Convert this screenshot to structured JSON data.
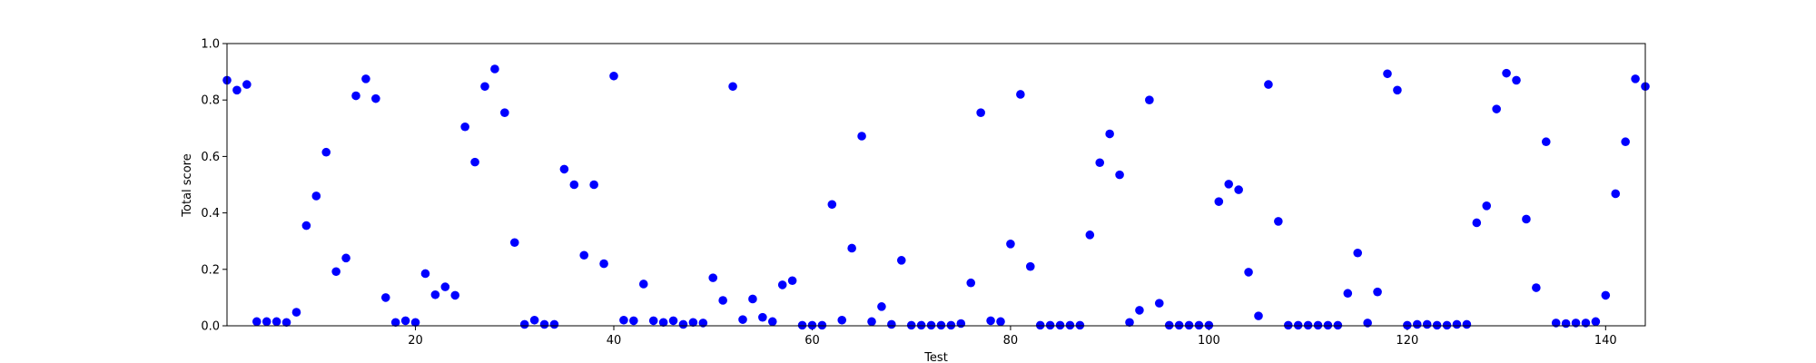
{
  "chart_data": {
    "type": "scatter",
    "title": "",
    "xlabel": "Test",
    "ylabel": "Total score",
    "xlim": [
      1,
      144
    ],
    "ylim": [
      0.0,
      1.0
    ],
    "xticks": [
      20,
      40,
      60,
      80,
      100,
      120,
      140
    ],
    "yticks": [
      0.0,
      0.2,
      0.4,
      0.6,
      0.8,
      1.0
    ],
    "grid": false,
    "legend": "none",
    "marker_color": "#0000ff",
    "series": [
      {
        "x": [
          1,
          2,
          3,
          4,
          5,
          6,
          7,
          8,
          9,
          10,
          11,
          12,
          13,
          14,
          15,
          16,
          17,
          18,
          19,
          20,
          21,
          22,
          23,
          24,
          25,
          26,
          27,
          28,
          29,
          30,
          31,
          32,
          33,
          34,
          35,
          36,
          37,
          38,
          39,
          40,
          41,
          42,
          43,
          44,
          45,
          46,
          47,
          48,
          49,
          50,
          51,
          52,
          53,
          54,
          55,
          56,
          57,
          58,
          59,
          60,
          61,
          62,
          63,
          64,
          65,
          66,
          67,
          68,
          69,
          70,
          71,
          72,
          73,
          74,
          75,
          76,
          77,
          78,
          79,
          80,
          81,
          82,
          83,
          84,
          85,
          86,
          87,
          88,
          89,
          90,
          91,
          92,
          93,
          94,
          95,
          96,
          97,
          98,
          99,
          100,
          101,
          102,
          103,
          104,
          105,
          106,
          107,
          108,
          109,
          110,
          111,
          112,
          113,
          114,
          115,
          116,
          117,
          118,
          119,
          120,
          121,
          122,
          123,
          124,
          125,
          126,
          127,
          128,
          129,
          130,
          131,
          132,
          133,
          134,
          135,
          136,
          137,
          138,
          139,
          140,
          141,
          142,
          143,
          144
        ],
        "y": [
          0.87,
          0.835,
          0.855,
          0.015,
          0.015,
          0.015,
          0.012,
          0.048,
          0.355,
          0.46,
          0.615,
          0.192,
          0.24,
          0.815,
          0.875,
          0.805,
          0.1,
          0.012,
          0.018,
          0.012,
          0.185,
          0.11,
          0.138,
          0.108,
          0.705,
          0.58,
          0.848,
          0.91,
          0.755,
          0.295,
          0.005,
          0.02,
          0.005,
          0.005,
          0.555,
          0.5,
          0.25,
          0.5,
          0.22,
          0.885,
          0.02,
          0.018,
          0.148,
          0.018,
          0.012,
          0.018,
          0.005,
          0.012,
          0.01,
          0.17,
          0.09,
          0.848,
          0.022,
          0.095,
          0.03,
          0.015,
          0.145,
          0.16,
          0.002,
          0.002,
          0.002,
          0.43,
          0.02,
          0.275,
          0.672,
          0.015,
          0.068,
          0.005,
          0.232,
          0.002,
          0.002,
          0.002,
          0.002,
          0.002,
          0.008,
          0.152,
          0.755,
          0.018,
          0.015,
          0.29,
          0.82,
          0.21,
          0.002,
          0.002,
          0.002,
          0.002,
          0.002,
          0.322,
          0.578,
          0.68,
          0.535,
          0.012,
          0.055,
          0.8,
          0.08,
          0.002,
          0.002,
          0.002,
          0.002,
          0.002,
          0.44,
          0.502,
          0.482,
          0.19,
          0.035,
          0.855,
          0.37,
          0.002,
          0.002,
          0.002,
          0.002,
          0.002,
          0.002,
          0.115,
          0.258,
          0.01,
          0.12,
          0.893,
          0.835,
          0.002,
          0.005,
          0.005,
          0.002,
          0.002,
          0.005,
          0.005,
          0.365,
          0.425,
          0.768,
          0.895,
          0.87,
          0.378,
          0.135,
          0.652,
          0.01,
          0.008,
          0.01,
          0.01,
          0.015,
          0.108,
          0.468,
          0.652,
          0.875,
          0.848
        ]
      }
    ]
  }
}
